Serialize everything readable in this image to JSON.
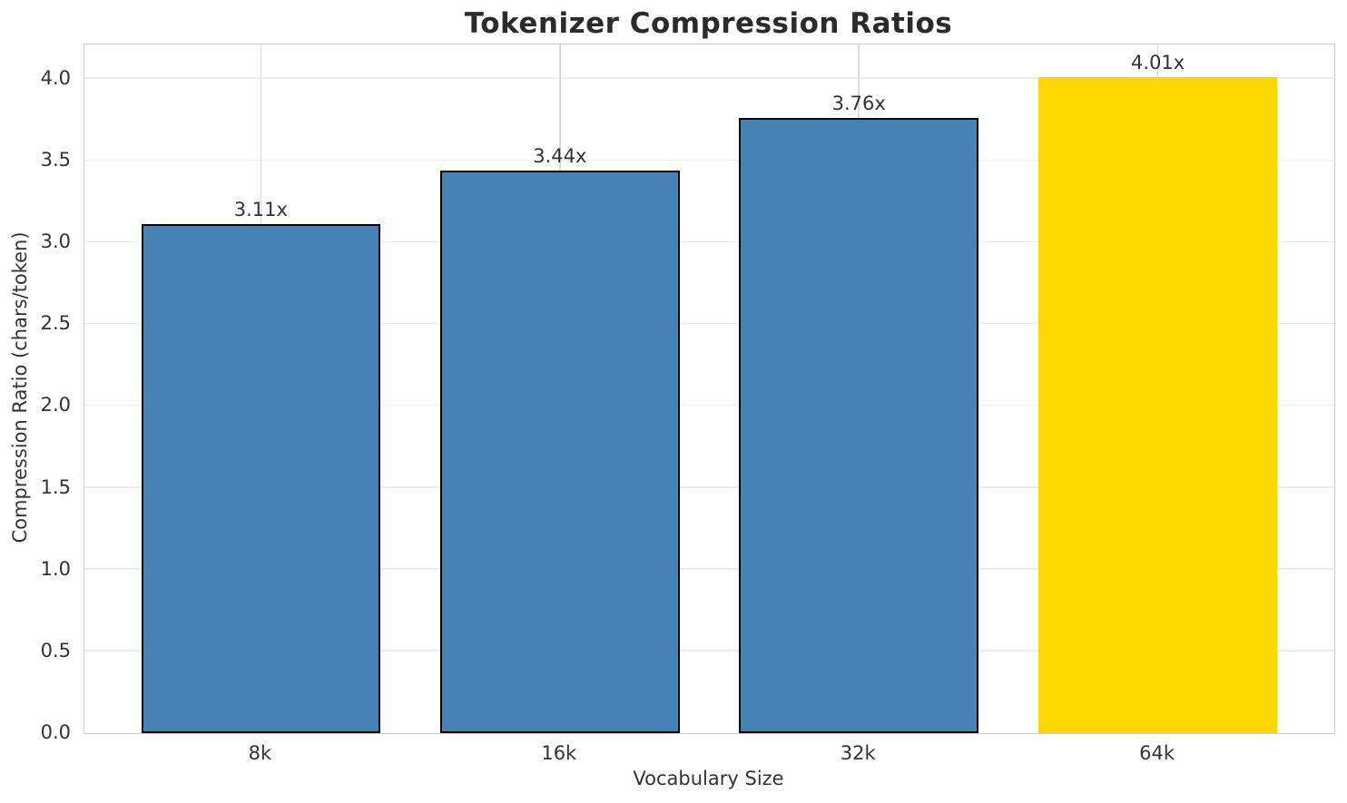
{
  "chart_data": {
    "type": "bar",
    "title": "Tokenizer Compression Ratios",
    "xlabel": "Vocabulary Size",
    "ylabel": "Compression Ratio (chars/token)",
    "categories": [
      "8k",
      "16k",
      "32k",
      "64k"
    ],
    "values": [
      3.11,
      3.44,
      3.76,
      4.01
    ],
    "bar_labels": [
      "3.11x",
      "3.44x",
      "3.76x",
      "4.01x"
    ],
    "bar_colors": [
      "#4682B4",
      "#4682B4",
      "#4682B4",
      "#FFD700"
    ],
    "bar_edge_colors": [
      "#000000",
      "#000000",
      "#000000",
      "#FFD700"
    ],
    "y_tick_values": [
      0.0,
      0.5,
      1.0,
      1.5,
      2.0,
      2.5,
      3.0,
      3.5,
      4.0
    ],
    "y_tick_labels": [
      "0.0",
      "0.5",
      "1.0",
      "1.5",
      "2.0",
      "2.5",
      "3.0",
      "3.5",
      "4.0"
    ],
    "ylim": [
      0,
      4.21
    ],
    "x_axis_units": 4.18,
    "first_bar_center_units": 0.59,
    "bar_spacing_units": 1.0,
    "bar_width_units": 0.8,
    "grid": "both",
    "legend_position": "none",
    "colors": {
      "highlight": "#FFD700",
      "primary": "#4682B4",
      "grid_horizontal": "#ececec",
      "grid_vertical": "#d9d9d9",
      "spine": "#cccccc",
      "text": "#333333",
      "title_text": "#2b2b2b"
    }
  }
}
